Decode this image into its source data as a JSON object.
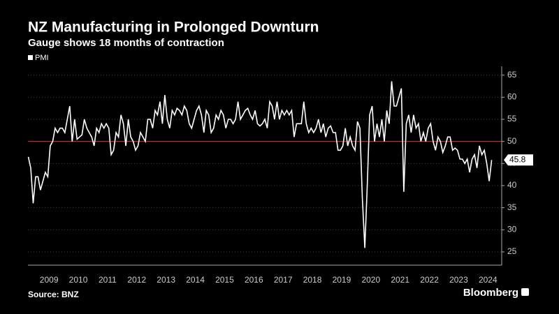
{
  "chart_data": {
    "type": "line",
    "title": "NZ Manufacturing in Prolonged Downturn",
    "subtitle": "Gauge shows 18 months of contraction",
    "source": "Source: BNZ",
    "brand": "Bloomberg",
    "x": [
      2008.792,
      2008.875,
      2008.958,
      2009.042,
      2009.125,
      2009.208,
      2009.292,
      2009.375,
      2009.458,
      2009.542,
      2009.625,
      2009.708,
      2009.792,
      2009.875,
      2009.958,
      2010.042,
      2010.125,
      2010.208,
      2010.292,
      2010.375,
      2010.458,
      2010.542,
      2010.625,
      2010.708,
      2010.792,
      2010.875,
      2010.958,
      2011.042,
      2011.125,
      2011.208,
      2011.292,
      2011.375,
      2011.458,
      2011.542,
      2011.625,
      2011.708,
      2011.792,
      2011.875,
      2011.958,
      2012.042,
      2012.125,
      2012.208,
      2012.292,
      2012.375,
      2012.458,
      2012.542,
      2012.625,
      2012.708,
      2012.792,
      2012.875,
      2012.958,
      2013.042,
      2013.125,
      2013.208,
      2013.292,
      2013.375,
      2013.458,
      2013.542,
      2013.625,
      2013.708,
      2013.792,
      2013.875,
      2013.958,
      2014.042,
      2014.125,
      2014.208,
      2014.292,
      2014.375,
      2014.458,
      2014.542,
      2014.625,
      2014.708,
      2014.792,
      2014.875,
      2014.958,
      2015.042,
      2015.125,
      2015.208,
      2015.292,
      2015.375,
      2015.458,
      2015.542,
      2015.625,
      2015.708,
      2015.792,
      2015.875,
      2015.958,
      2016.042,
      2016.125,
      2016.208,
      2016.292,
      2016.375,
      2016.458,
      2016.542,
      2016.625,
      2016.708,
      2016.792,
      2016.875,
      2016.958,
      2017.042,
      2017.125,
      2017.208,
      2017.292,
      2017.375,
      2017.458,
      2017.542,
      2017.625,
      2017.708,
      2017.792,
      2017.875,
      2017.958,
      2018.042,
      2018.125,
      2018.208,
      2018.292,
      2018.375,
      2018.458,
      2018.542,
      2018.625,
      2018.708,
      2018.792,
      2018.875,
      2018.958,
      2019.042,
      2019.125,
      2019.208,
      2019.292,
      2019.375,
      2019.458,
      2019.542,
      2019.625,
      2019.708,
      2019.792,
      2019.875,
      2019.958,
      2020.042,
      2020.125,
      2020.208,
      2020.292,
      2020.375,
      2020.458,
      2020.542,
      2020.625,
      2020.708,
      2020.792,
      2020.875,
      2020.958,
      2021.042,
      2021.125,
      2021.208,
      2021.292,
      2021.375,
      2021.458,
      2021.542,
      2021.625,
      2021.708,
      2021.792,
      2021.875,
      2021.958,
      2022.042,
      2022.125,
      2022.208,
      2022.292,
      2022.375,
      2022.458,
      2022.542,
      2022.625,
      2022.708,
      2022.792,
      2022.875,
      2022.958,
      2023.042,
      2023.125,
      2023.208,
      2023.292,
      2023.375,
      2023.458,
      2023.542,
      2023.625,
      2023.708,
      2023.792,
      2023.875,
      2023.958,
      2024.042,
      2024.125,
      2024.208,
      2024.292,
      2024.375,
      2024.458,
      2024.542,
      2024.625
    ],
    "series": [
      {
        "name": "PMI",
        "color": "#ffffff",
        "values": [
          46.5,
          44,
          36,
          42,
          42,
          39,
          41,
          43,
          42,
          49,
          50,
          53,
          52,
          53,
          53,
          52,
          55,
          58,
          50,
          55,
          50.5,
          51,
          51.5,
          55,
          53,
          52,
          51,
          49,
          53,
          52,
          54,
          53,
          54,
          53,
          47,
          48,
          52,
          51,
          56,
          54,
          49,
          55,
          51,
          50,
          48,
          49,
          52,
          51,
          50,
          55,
          55,
          53,
          57,
          56,
          59,
          54,
          60.5,
          55,
          53,
          57,
          56,
          57.5,
          57,
          56,
          58,
          57,
          54,
          53,
          55,
          57,
          58,
          56,
          52,
          57,
          56,
          52,
          53,
          56,
          55,
          57,
          56,
          53,
          55,
          55,
          54,
          55,
          59,
          55,
          56,
          57,
          57.5,
          56,
          55,
          57,
          54,
          53.5,
          54,
          55,
          53,
          59,
          58,
          55,
          59,
          55,
          57,
          56,
          57,
          56,
          57,
          51,
          54,
          54,
          54,
          59,
          54,
          52,
          53,
          52,
          53,
          55,
          52,
          54,
          51,
          53,
          53.5,
          52,
          52,
          48,
          48,
          49,
          53,
          49,
          51,
          49,
          48,
          54.5,
          53,
          37,
          25.9,
          40,
          56,
          58,
          50,
          54,
          51,
          55,
          50,
          57,
          54,
          63.6,
          58,
          58,
          60,
          62,
          38.6,
          54,
          56,
          52,
          56,
          53,
          54,
          50,
          52,
          50,
          53,
          54,
          50,
          48,
          51,
          50,
          47.5,
          49,
          51,
          51,
          48,
          48.5,
          48,
          46,
          46,
          45,
          46,
          43,
          46,
          47,
          44,
          49,
          47,
          48,
          45,
          41,
          45.8
        ]
      }
    ],
    "reference_line": {
      "value": 50,
      "color": "#e0313a"
    },
    "annotations": [
      {
        "label": "45.8",
        "y": 45.8
      }
    ],
    "xlim": [
      2008.78,
      2024.97
    ],
    "xticks": [
      {
        "value": 2009.5,
        "label": "2009"
      },
      {
        "value": 2010.5,
        "label": "2010"
      },
      {
        "value": 2011.5,
        "label": "2011"
      },
      {
        "value": 2012.5,
        "label": "2012"
      },
      {
        "value": 2013.5,
        "label": "2013"
      },
      {
        "value": 2014.5,
        "label": "2014"
      },
      {
        "value": 2015.5,
        "label": "2015"
      },
      {
        "value": 2016.5,
        "label": "2016"
      },
      {
        "value": 2017.5,
        "label": "2017"
      },
      {
        "value": 2018.5,
        "label": "2018"
      },
      {
        "value": 2019.5,
        "label": "2019"
      },
      {
        "value": 2020.5,
        "label": "2020"
      },
      {
        "value": 2021.5,
        "label": "2021"
      },
      {
        "value": 2022.5,
        "label": "2022"
      },
      {
        "value": 2023.5,
        "label": "2023"
      },
      {
        "value": 2024.5,
        "label": "2024"
      }
    ],
    "ylim": [
      22,
      67
    ],
    "yticks": [
      25,
      30,
      35,
      40,
      45,
      50,
      55,
      60,
      65
    ],
    "grid": true
  }
}
